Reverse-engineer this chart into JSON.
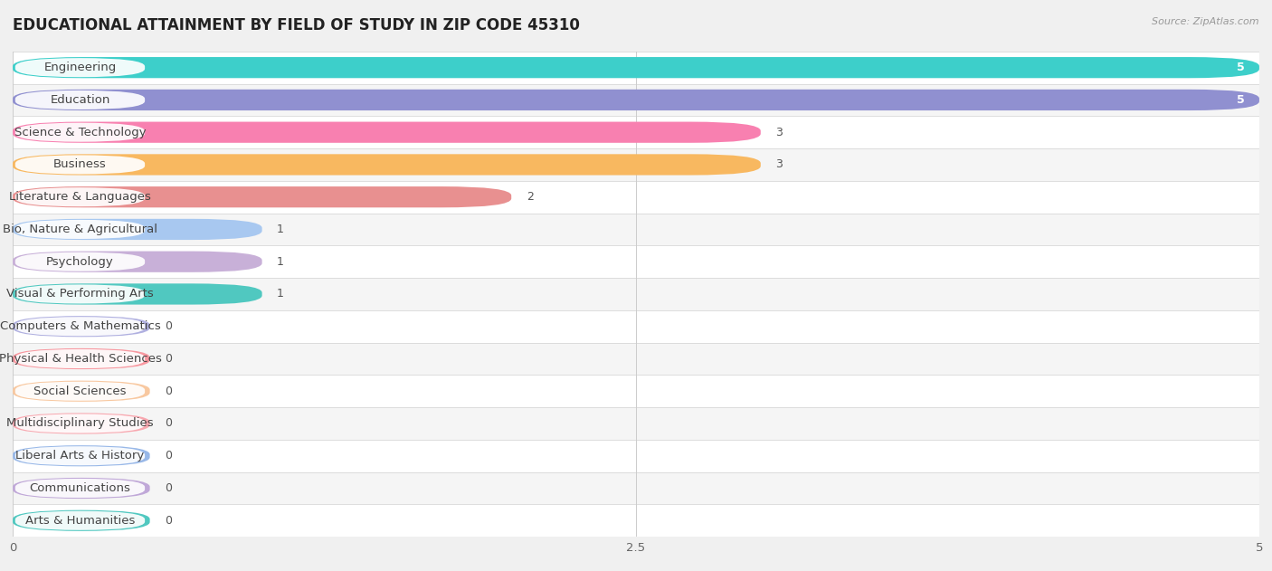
{
  "title": "EDUCATIONAL ATTAINMENT BY FIELD OF STUDY IN ZIP CODE 45310",
  "source": "Source: ZipAtlas.com",
  "categories": [
    "Engineering",
    "Education",
    "Science & Technology",
    "Business",
    "Literature & Languages",
    "Bio, Nature & Agricultural",
    "Psychology",
    "Visual & Performing Arts",
    "Computers & Mathematics",
    "Physical & Health Sciences",
    "Social Sciences",
    "Multidisciplinary Studies",
    "Liberal Arts & History",
    "Communications",
    "Arts & Humanities"
  ],
  "values": [
    5,
    5,
    3,
    3,
    2,
    1,
    1,
    1,
    0,
    0,
    0,
    0,
    0,
    0,
    0
  ],
  "bar_colors": [
    "#3dcfca",
    "#9090d0",
    "#f880b0",
    "#f8b860",
    "#e89090",
    "#a8c8f0",
    "#c8b0d8",
    "#50c8c0",
    "#b0b0e0",
    "#f898a0",
    "#f8c8a0",
    "#f8a8b0",
    "#98b8e8",
    "#c0a8d8",
    "#50c8c0"
  ],
  "xlim": [
    0,
    5
  ],
  "xticks": [
    0,
    2.5,
    5
  ],
  "background_color": "#f0f0f0",
  "row_bg_odd": "#ffffff",
  "row_bg_even": "#f5f5f5",
  "title_fontsize": 12,
  "label_fontsize": 9.5,
  "value_fontsize": 9,
  "bar_height": 0.65,
  "zero_bar_width": 0.55
}
